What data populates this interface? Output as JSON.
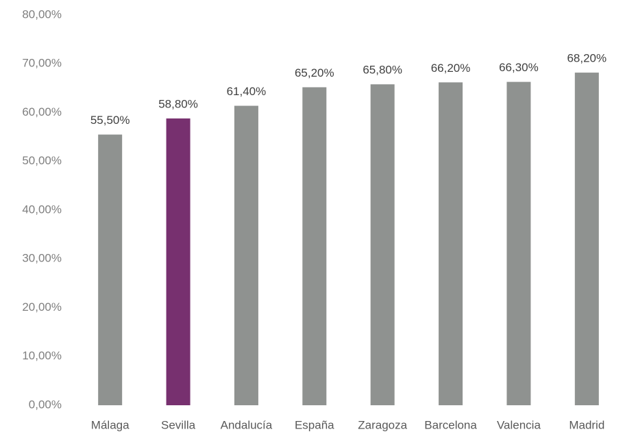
{
  "chart_data": {
    "type": "bar",
    "categories": [
      "Málaga",
      "Sevilla",
      "Andalucía",
      "España",
      "Zaragoza",
      "Barcelona",
      "Valencia",
      "Madrid"
    ],
    "values": [
      55.5,
      58.8,
      61.4,
      65.2,
      65.8,
      66.2,
      66.3,
      68.2
    ],
    "value_labels": [
      "55,50%",
      "58,80%",
      "61,40%",
      "65,20%",
      "65,80%",
      "66,20%",
      "66,30%",
      "68,20%"
    ],
    "colors": [
      "#8f9290",
      "#77306f",
      "#8f9290",
      "#8f9290",
      "#8f9290",
      "#8f9290",
      "#8f9290",
      "#8f9290"
    ],
    "ylim": [
      0,
      80
    ],
    "yticks": [
      {
        "value": 0,
        "label": "0,00%"
      },
      {
        "value": 10,
        "label": "10,00%"
      },
      {
        "value": 20,
        "label": "20,00%"
      },
      {
        "value": 30,
        "label": "30,00%"
      },
      {
        "value": 40,
        "label": "40,00%"
      },
      {
        "value": 50,
        "label": "50,00%"
      },
      {
        "value": 60,
        "label": "60,00%"
      },
      {
        "value": 70,
        "label": "70,00%"
      },
      {
        "value": 80,
        "label": "80,00%"
      }
    ],
    "grid": false
  }
}
